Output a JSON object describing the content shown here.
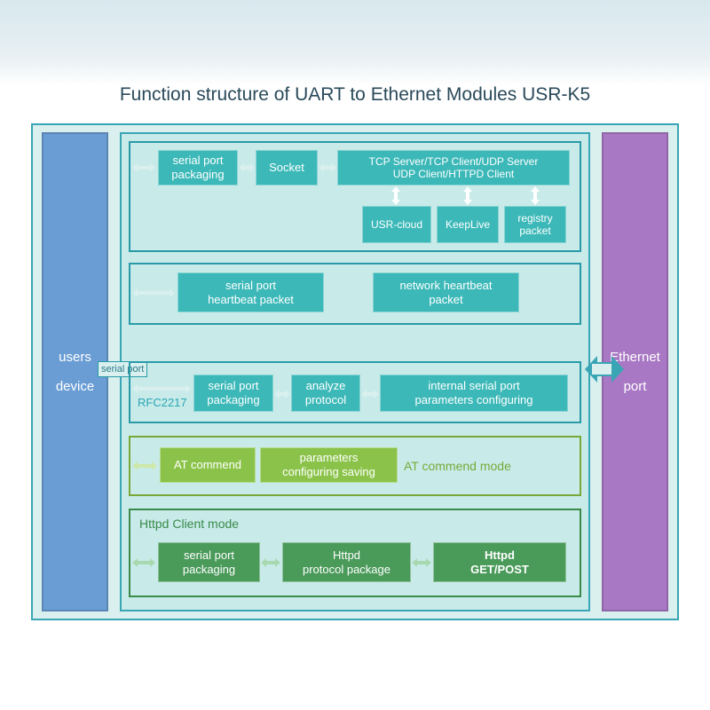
{
  "title": "Function structure of UART to Ethernet Modules USR-K5",
  "colors": {
    "outer_border": "#3aa5b5",
    "outer_bg": "#d9f0ef",
    "center_bg": "#c8ebe9",
    "left_pillar": "#6a9dd4",
    "right_pillar": "#a978c4",
    "teal_panel_border": "#2a9aa8",
    "teal_box": "#3cb8b8",
    "green_box": "#8bc34a",
    "green_panel_border": "#7aa838",
    "darkgreen_box": "#4a9a5a",
    "darkgreen_panel_border": "#3a8a4a",
    "arrow_light": "#d9f0ef",
    "arrow_white": "#ffffff",
    "big_arrow_border": "#3aa5b5"
  },
  "left_pillar": {
    "line1": "users",
    "line2": "device"
  },
  "right_pillar": {
    "line1": "Ethernet",
    "line2": "port"
  },
  "serial_port_label": "serial port",
  "panel1": {
    "box1": "serial port\npackaging",
    "box2": "Socket",
    "box3": "TCP Server/TCP Client/UDP Server\nUDP Client/HTTPD Client",
    "box4": "USR-cloud",
    "box5": "KeepLive",
    "box6": "registry\npacket"
  },
  "panel2": {
    "box1": "serial port\nheartbeat packet",
    "box2": "network heartbeat\npacket"
  },
  "panel3": {
    "rfc_label": "RFC2217",
    "box1": "serial port\npackaging",
    "box2": "analyze\nprotocol",
    "box3": "internal serial port\nparameters configuring"
  },
  "panel4": {
    "box1": "AT commend",
    "box2": "parameters\nconfiguring saving",
    "mode_label": "AT commend mode"
  },
  "panel5": {
    "mode_label": "Httpd Client mode",
    "box1": "serial port\npackaging",
    "box2": "Httpd\nprotocol package",
    "box3": "Httpd\nGET/POST"
  },
  "layout": {
    "diagram_w": 730,
    "diagram_h": 560,
    "font_size_box": 13,
    "font_size_title": 21
  }
}
